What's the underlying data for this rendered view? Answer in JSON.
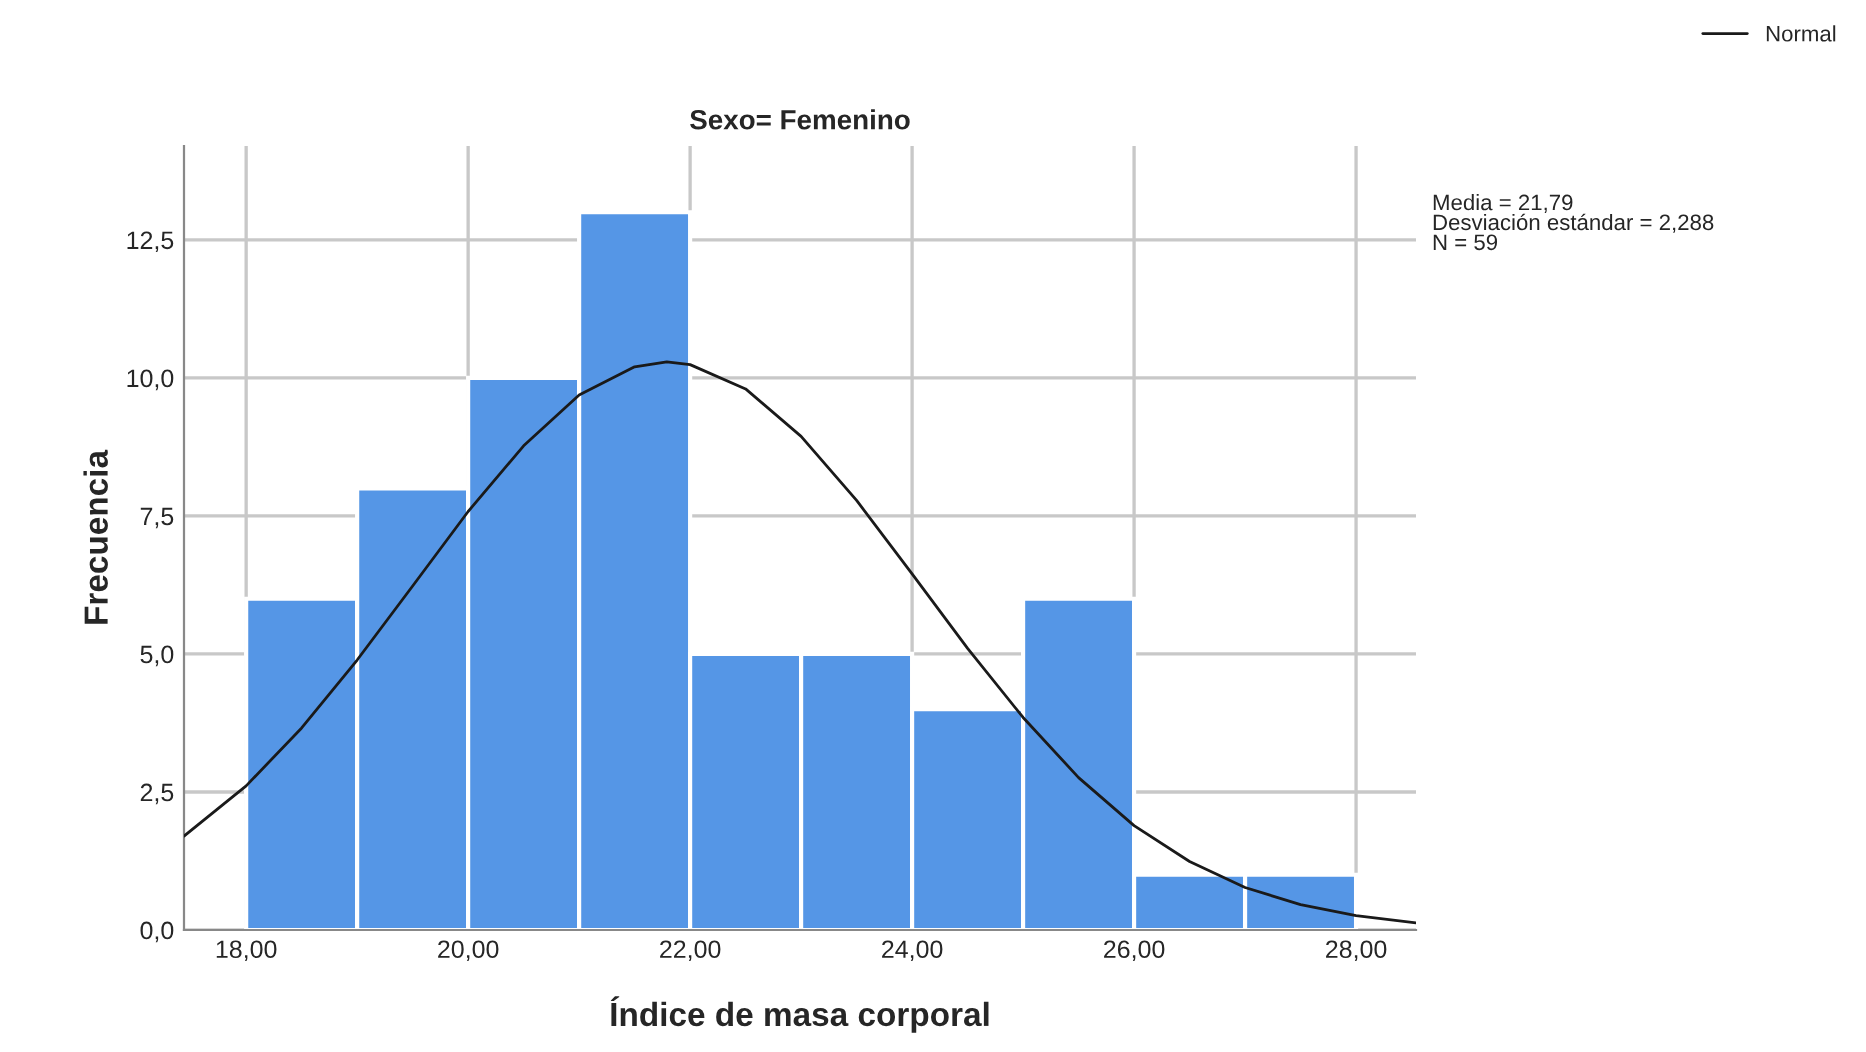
{
  "chart_data": {
    "type": "histogram",
    "title": "Sexo= Femenino",
    "xlabel": "Índice de masa corporal",
    "ylabel": "Frecuencia",
    "bins": [
      18,
      19,
      20,
      21,
      22,
      23,
      24,
      25,
      26,
      27,
      28
    ],
    "values": [
      6,
      8,
      10,
      13,
      5,
      5,
      4,
      6,
      1,
      1
    ],
    "color": "#5596e6",
    "series": [
      {
        "type": "line",
        "name": "Normal",
        "color": "#1a1a1a",
        "x": [
          17.44,
          18,
          18.5,
          19,
          19.5,
          20,
          20.5,
          21,
          21.5,
          21.79,
          22,
          22.5,
          23,
          23.5,
          24,
          24.5,
          25,
          25.5,
          26,
          26.5,
          27,
          27.5,
          28,
          28.54
        ],
        "values": [
          1.7,
          2.61,
          3.66,
          4.89,
          6.23,
          7.58,
          8.77,
          9.69,
          10.2,
          10.29,
          10.24,
          9.8,
          8.94,
          7.78,
          6.45,
          5.1,
          3.85,
          2.76,
          1.89,
          1.24,
          0.77,
          0.46,
          0.26,
          0.13
        ]
      }
    ],
    "xlim": [
      17.44,
      28.54
    ],
    "ylim": [
      0,
      14.2
    ],
    "xticks": [
      {
        "value": 18,
        "label": "18,00"
      },
      {
        "value": 20,
        "label": "20,00"
      },
      {
        "value": 22,
        "label": "22,00"
      },
      {
        "value": 24,
        "label": "24,00"
      },
      {
        "value": 26,
        "label": "26,00"
      },
      {
        "value": 28,
        "label": "28,00"
      }
    ],
    "yticks": [
      {
        "value": 0,
        "label": "0,0"
      },
      {
        "value": 2.5,
        "label": "2,5"
      },
      {
        "value": 5,
        "label": "5,0"
      },
      {
        "value": 7.5,
        "label": "7,5"
      },
      {
        "value": 10,
        "label": "10,0"
      },
      {
        "value": 12.5,
        "label": "12,5"
      }
    ],
    "grid": true,
    "legend": "top right",
    "annotations": [
      "Media = 21,79\nDesviación estándar = 2,288\nN = 59"
    ]
  }
}
